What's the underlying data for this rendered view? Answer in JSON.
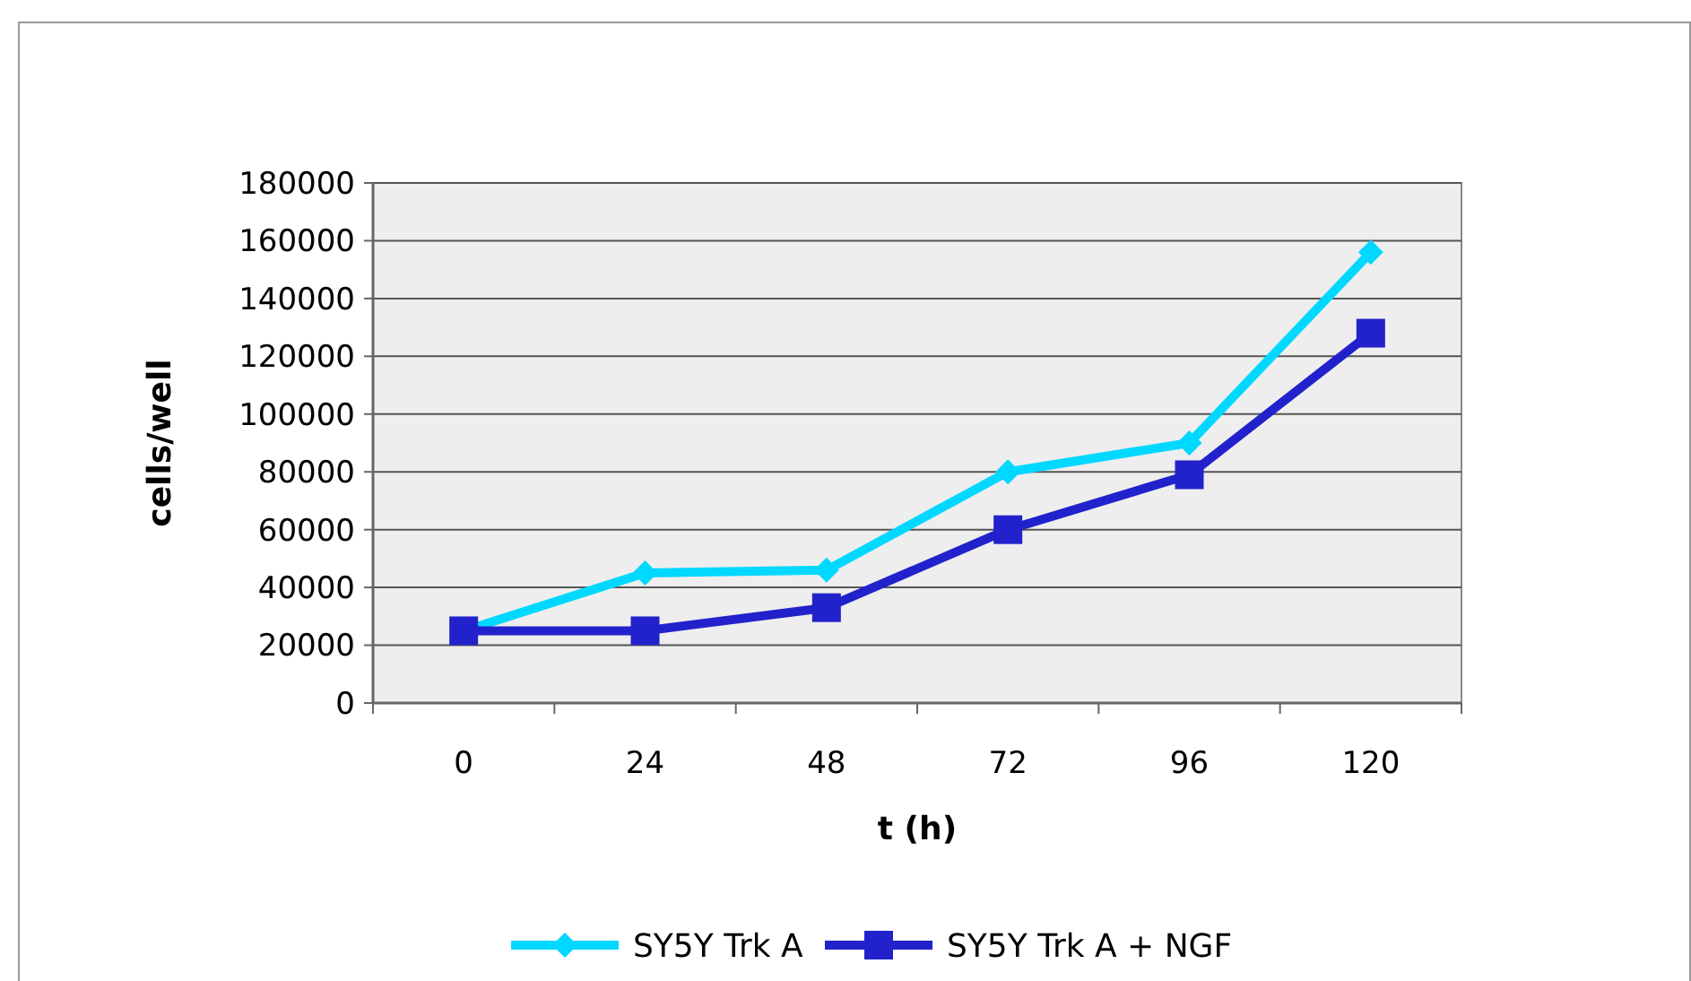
{
  "chart_data": {
    "type": "line",
    "xlabel": "t (h)",
    "ylabel": "cells/well",
    "categories": [
      "0",
      "24",
      "48",
      "72",
      "96",
      "120"
    ],
    "series": [
      {
        "name": "SY5Y Trk A",
        "color": "#00d8ff",
        "marker": "diamond",
        "values": [
          25000,
          45000,
          46000,
          80000,
          90000,
          156000
        ]
      },
      {
        "name": "SY5Y Trk A + NGF",
        "color": "#2222cc",
        "marker": "square",
        "values": [
          25000,
          25000,
          33000,
          60000,
          79000,
          128000
        ]
      }
    ],
    "ylim": [
      0,
      180000
    ],
    "yticks": [
      0,
      20000,
      40000,
      60000,
      80000,
      100000,
      120000,
      140000,
      160000,
      180000
    ],
    "grid": "y",
    "legend": "bottom"
  }
}
